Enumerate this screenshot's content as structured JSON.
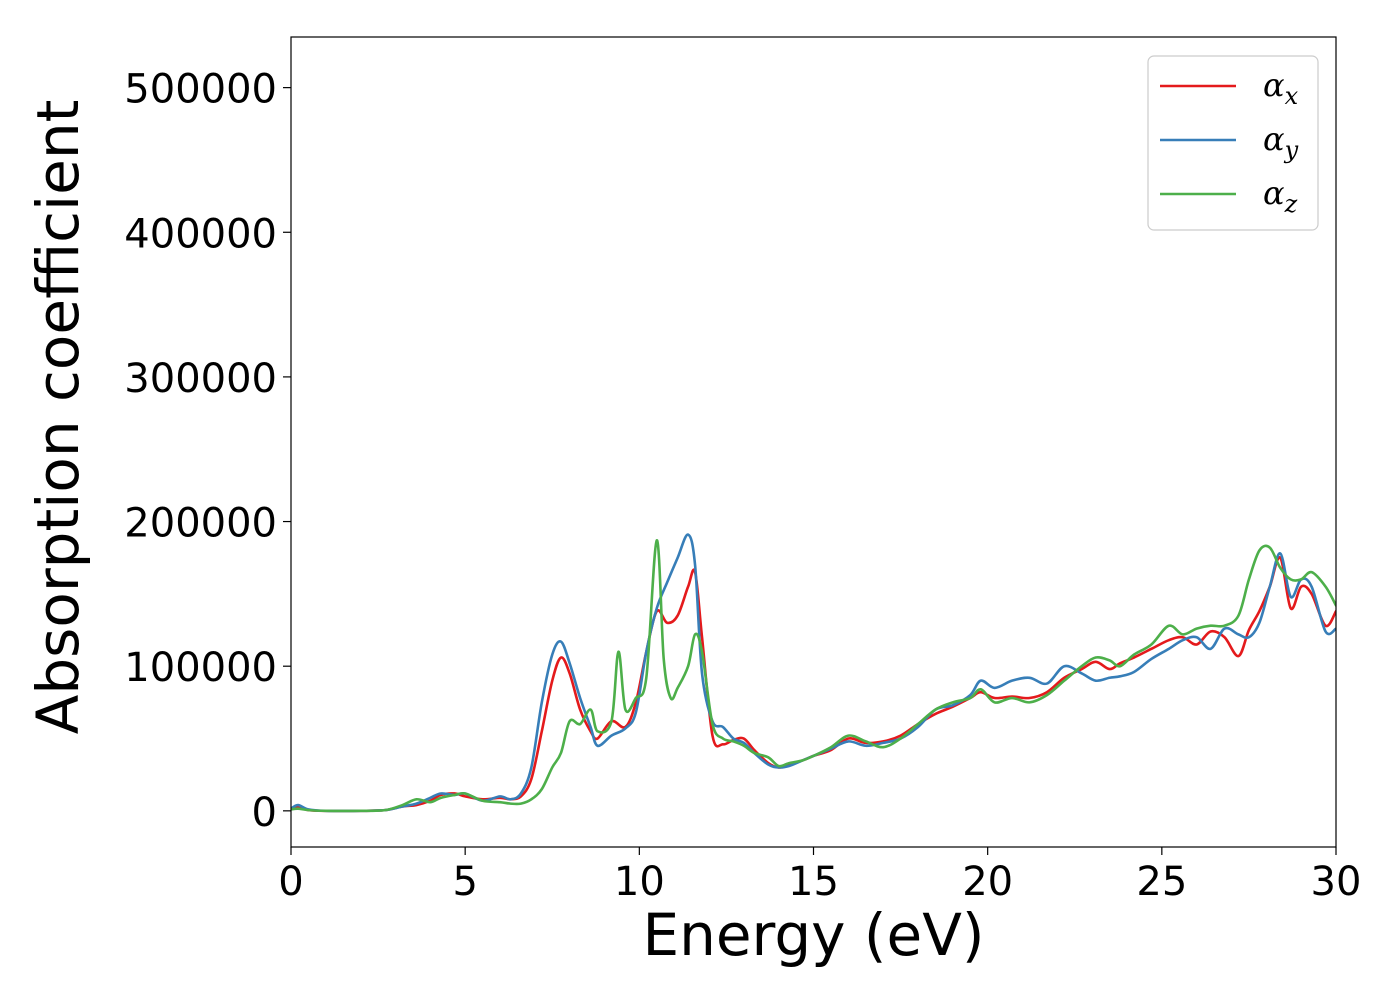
{
  "chart_data": {
    "type": "line",
    "title": "",
    "xlabel": "Energy (eV)",
    "ylabel": "Absorption coefficient",
    "xlim": [
      0,
      30
    ],
    "ylim": [
      -25000,
      535000
    ],
    "xticks": [
      "0",
      "5",
      "10",
      "15",
      "20",
      "25",
      "30"
    ],
    "yticks": [
      "0",
      "100000",
      "200000",
      "300000",
      "400000",
      "500000"
    ],
    "grid": false,
    "legend_position": "top-right",
    "series": [
      {
        "name": "αx",
        "color": "#e41a1c",
        "x": [
          0,
          0.2,
          0.5,
          1,
          2,
          2.7,
          3.2,
          3.6,
          4,
          4.3,
          4.7,
          5,
          5.5,
          6,
          6.3,
          6.6,
          6.9,
          7.2,
          7.5,
          7.75,
          8,
          8.3,
          8.6,
          8.8,
          9.2,
          9.6,
          9.9,
          10.2,
          10.5,
          10.8,
          11.1,
          11.4,
          11.6,
          11.8,
          12.1,
          12.4,
          12.7,
          13,
          13.3,
          13.7,
          14,
          14.3,
          14.7,
          15,
          15.5,
          16,
          16.5,
          17,
          17.5,
          18,
          18.5,
          19,
          19.5,
          19.8,
          20.2,
          20.7,
          21.2,
          21.7,
          22.2,
          22.7,
          23.1,
          23.5,
          23.8,
          24.2,
          24.7,
          25.2,
          25.6,
          26,
          26.4,
          26.8,
          27.2,
          27.5,
          27.8,
          28.1,
          28.4,
          28.7,
          29,
          29.3,
          29.7,
          30
        ],
        "y": [
          1000,
          2500,
          500,
          0,
          0,
          500,
          3000,
          4000,
          7000,
          11000,
          12000,
          10000,
          8000,
          9000,
          8000,
          10000,
          22000,
          55000,
          90000,
          106000,
          95000,
          70000,
          55000,
          50000,
          62000,
          58000,
          75000,
          110000,
          138000,
          130000,
          135000,
          155000,
          165000,
          120000,
          52000,
          46000,
          49000,
          50000,
          42000,
          33000,
          30000,
          32000,
          35000,
          38000,
          42000,
          50000,
          47000,
          48000,
          52000,
          60000,
          67000,
          72000,
          78000,
          82000,
          78000,
          79000,
          78000,
          82000,
          92000,
          98000,
          103000,
          98000,
          102000,
          106000,
          112000,
          118000,
          120000,
          115000,
          124000,
          120000,
          107000,
          125000,
          138000,
          155000,
          175000,
          140000,
          155000,
          150000,
          128000,
          138000
        ]
      },
      {
        "name": "αy",
        "color": "#377eb8",
        "x": [
          0,
          0.2,
          0.5,
          1,
          2,
          2.7,
          3.2,
          3.6,
          4,
          4.3,
          4.7,
          5,
          5.5,
          6,
          6.3,
          6.6,
          6.9,
          7.2,
          7.5,
          7.75,
          8,
          8.3,
          8.6,
          8.8,
          9.2,
          9.6,
          9.9,
          10.2,
          10.5,
          10.8,
          11.1,
          11.4,
          11.6,
          11.8,
          12.1,
          12.4,
          12.7,
          13,
          13.3,
          13.7,
          14,
          14.3,
          14.7,
          15,
          15.5,
          16,
          16.5,
          17,
          17.5,
          18,
          18.5,
          19,
          19.5,
          19.8,
          20.2,
          20.7,
          21.2,
          21.7,
          22.2,
          22.7,
          23.1,
          23.5,
          23.8,
          24.2,
          24.7,
          25.2,
          25.6,
          26,
          26.4,
          26.8,
          27.2,
          27.5,
          27.8,
          28.1,
          28.4,
          28.7,
          29,
          29.3,
          29.7,
          30
        ],
        "y": [
          1500,
          4000,
          1000,
          0,
          0,
          500,
          3000,
          5000,
          9000,
          12000,
          11000,
          12000,
          7000,
          10000,
          8000,
          12000,
          30000,
          75000,
          108000,
          117000,
          102000,
          78000,
          58000,
          45000,
          52000,
          57000,
          68000,
          110000,
          140000,
          158000,
          175000,
          191000,
          170000,
          95000,
          62000,
          58000,
          50000,
          47000,
          40000,
          32000,
          30000,
          31000,
          35000,
          38000,
          43000,
          48000,
          45000,
          47000,
          50000,
          58000,
          70000,
          73000,
          80000,
          90000,
          85000,
          90000,
          92000,
          88000,
          100000,
          95000,
          90000,
          92000,
          93000,
          96000,
          105000,
          112000,
          118000,
          120000,
          112000,
          126000,
          122000,
          120000,
          130000,
          155000,
          178000,
          148000,
          160000,
          155000,
          124000,
          126000
        ]
      },
      {
        "name": "αz",
        "color": "#4daf4a",
        "x": [
          0,
          0.2,
          0.5,
          1,
          2,
          2.7,
          3.2,
          3.6,
          4,
          4.3,
          4.7,
          5,
          5.5,
          6,
          6.3,
          6.6,
          6.9,
          7.2,
          7.5,
          7.75,
          8,
          8.3,
          8.6,
          8.8,
          9.2,
          9.4,
          9.6,
          9.9,
          10.2,
          10.5,
          10.7,
          10.9,
          11.1,
          11.4,
          11.6,
          11.8,
          12.1,
          12.4,
          12.7,
          13,
          13.3,
          13.7,
          14,
          14.3,
          14.7,
          15,
          15.5,
          16,
          16.5,
          17,
          17.5,
          18,
          18.5,
          19,
          19.5,
          19.8,
          20.2,
          20.7,
          21.2,
          21.7,
          22.2,
          22.7,
          23.1,
          23.5,
          23.8,
          24.2,
          24.7,
          25.2,
          25.6,
          26,
          26.4,
          26.8,
          27.2,
          27.5,
          27.8,
          28.1,
          28.4,
          28.7,
          29,
          29.3,
          29.7,
          30
        ],
        "y": [
          1000,
          1500,
          500,
          0,
          0,
          500,
          4000,
          8000,
          6000,
          9000,
          11000,
          12000,
          7000,
          6000,
          5000,
          5000,
          8000,
          15000,
          30000,
          40000,
          62000,
          60000,
          70000,
          55000,
          62000,
          110000,
          70000,
          78000,
          92000,
          187000,
          105000,
          78000,
          85000,
          100000,
          122000,
          110000,
          60000,
          50000,
          48000,
          45000,
          40000,
          37000,
          31000,
          33000,
          35000,
          38000,
          44000,
          52000,
          48000,
          44000,
          50000,
          60000,
          70000,
          75000,
          78000,
          84000,
          75000,
          78000,
          75000,
          80000,
          90000,
          100000,
          106000,
          104000,
          100000,
          108000,
          115000,
          128000,
          122000,
          126000,
          128000,
          128000,
          135000,
          160000,
          180000,
          182000,
          168000,
          160000,
          160000,
          165000,
          155000,
          142000
        ]
      }
    ]
  }
}
